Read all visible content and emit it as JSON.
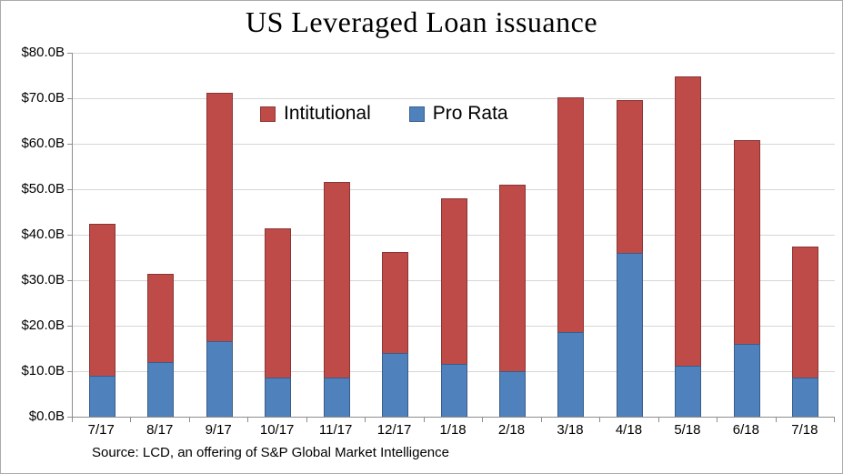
{
  "title": "US Leveraged Loan issuance",
  "source": "Source: LCD, an offering of S&P Global Market Intelligence",
  "legend": [
    {
      "label": "Intitutional",
      "color": "#be4b48"
    },
    {
      "label": "Pro Rata",
      "color": "#4f81bd"
    }
  ],
  "chart_data": {
    "type": "bar",
    "stacked": true,
    "title": "US Leveraged Loan issuance",
    "xlabel": "",
    "ylabel": "",
    "ylim": [
      0,
      80
    ],
    "ytick_step": 10,
    "ytick_labels": [
      "$0.0B",
      "$10.0B",
      "$20.0B",
      "$30.0B",
      "$40.0B",
      "$50.0B",
      "$60.0B",
      "$70.0B",
      "$80.0B"
    ],
    "grid": true,
    "legend_position": "inside-top",
    "categories": [
      "7/17",
      "8/17",
      "9/17",
      "10/17",
      "11/17",
      "12/17",
      "1/18",
      "2/18",
      "3/18",
      "4/18",
      "5/18",
      "6/18",
      "7/18"
    ],
    "series": [
      {
        "name": "Pro Rata",
        "color": "#4f81bd",
        "values": [
          9,
          12,
          16.7,
          8.7,
          8.7,
          14,
          11.7,
          10,
          18.7,
          36,
          11.3,
          16,
          8.7
        ]
      },
      {
        "name": "Intitutional",
        "color": "#be4b48",
        "values": [
          33.5,
          19.5,
          54.6,
          32.8,
          43,
          22.3,
          36.3,
          41,
          51.6,
          33.7,
          63.5,
          44.8,
          28.8
        ]
      }
    ],
    "totals": [
      42.5,
      31.5,
      71.3,
      41.5,
      51.7,
      36.3,
      48,
      51,
      70.3,
      69.7,
      74.8,
      60.8,
      37.5
    ]
  }
}
